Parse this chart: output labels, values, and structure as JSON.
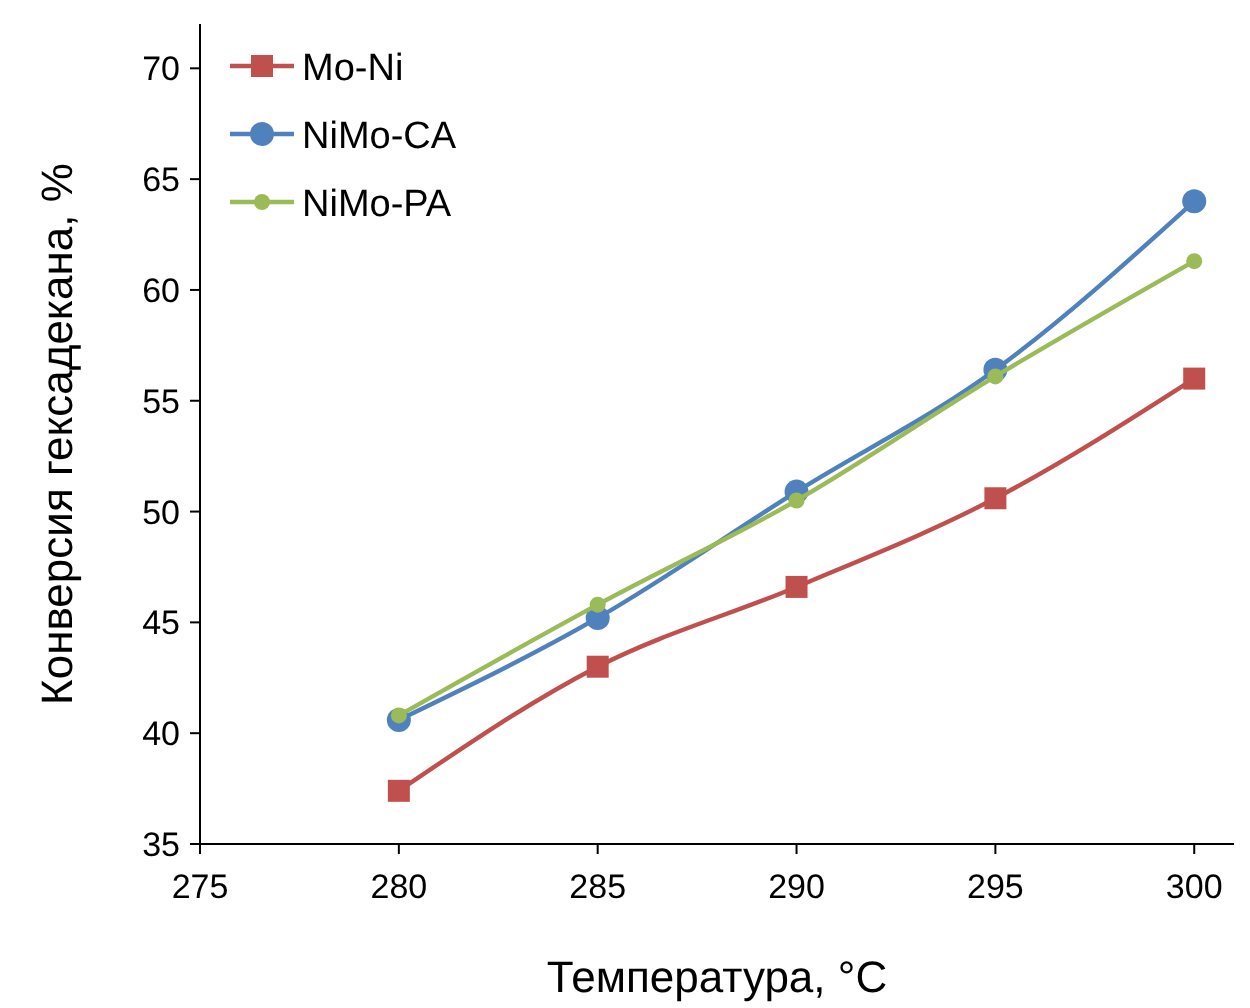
{
  "chart_data": {
    "type": "line",
    "xlabel": "Температура, °C",
    "ylabel": "Конверсия гексадекана, %",
    "x": [
      280,
      285,
      290,
      295,
      300
    ],
    "xlim": [
      275,
      301
    ],
    "xticks": [
      275,
      280,
      285,
      290,
      295,
      300
    ],
    "ylim": [
      35,
      72
    ],
    "yticks": [
      35,
      40,
      45,
      50,
      55,
      60,
      65,
      70
    ],
    "grid": false,
    "legend": "top left",
    "line_style": "solid",
    "series": [
      {
        "name": "Mo-Ni",
        "color": "#c0504d",
        "marker": "square",
        "values": [
          37.4,
          43.0,
          46.6,
          50.6,
          56.0
        ]
      },
      {
        "name": "NiMo-CA",
        "color": "#4f81bd",
        "marker": "circle",
        "values": [
          40.6,
          45.2,
          50.9,
          56.4,
          64.0
        ]
      },
      {
        "name": "NiMo-PA",
        "color": "#9bbb59",
        "marker": "circle",
        "values": [
          40.8,
          45.8,
          50.5,
          56.1,
          61.3
        ]
      }
    ]
  }
}
